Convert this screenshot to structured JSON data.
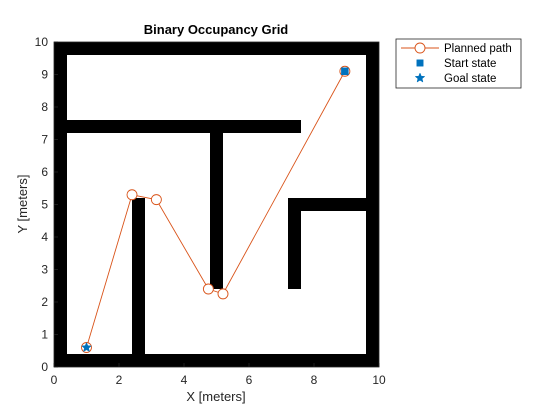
{
  "chart_data": {
    "type": "scatter",
    "title": "Binary Occupancy Grid",
    "xlabel": "X [meters]",
    "ylabel": "Y [meters]",
    "xlim": [
      0,
      10
    ],
    "ylim": [
      0,
      10
    ],
    "xticks": [
      "0",
      "2",
      "4",
      "6",
      "8",
      "10"
    ],
    "yticks": [
      "0",
      "1",
      "2",
      "3",
      "4",
      "5",
      "6",
      "7",
      "8",
      "9",
      "10"
    ],
    "grid": false,
    "legend_position": "outside-top-right",
    "occupied_cells": [
      {
        "x0": 0,
        "x1": 10,
        "y0": 9.6,
        "y1": 10
      },
      {
        "x0": 0,
        "x1": 10,
        "y0": 0,
        "y1": 0.4
      },
      {
        "x0": 0,
        "x1": 0.4,
        "y0": 0,
        "y1": 10
      },
      {
        "x0": 9.6,
        "x1": 10,
        "y0": 0,
        "y1": 10
      },
      {
        "x0": 0.4,
        "x1": 7.6,
        "y0": 7.2,
        "y1": 7.6
      },
      {
        "x0": 4.8,
        "x1": 5.2,
        "y0": 2.4,
        "y1": 7.2
      },
      {
        "x0": 2.4,
        "x1": 2.8,
        "y0": 0.4,
        "y1": 5.2
      },
      {
        "x0": 7.2,
        "x1": 7.6,
        "y0": 2.4,
        "y1": 5.2
      },
      {
        "x0": 7.6,
        "x1": 9.6,
        "y0": 4.8,
        "y1": 5.2
      }
    ],
    "series": [
      {
        "name": "Planned path",
        "color": "#D95319",
        "marker": "circle",
        "x": [
          1.0,
          2.4,
          3.15,
          4.75,
          5.2,
          8.95
        ],
        "y": [
          0.6,
          5.3,
          5.15,
          2.4,
          2.25,
          9.1
        ]
      },
      {
        "name": "Start state",
        "color": "#0072BD",
        "marker": "square",
        "x": [
          8.95
        ],
        "y": [
          9.1
        ]
      },
      {
        "name": "Goal state",
        "color": "#0072BD",
        "marker": "star",
        "x": [
          1.0
        ],
        "y": [
          0.6
        ]
      }
    ]
  }
}
